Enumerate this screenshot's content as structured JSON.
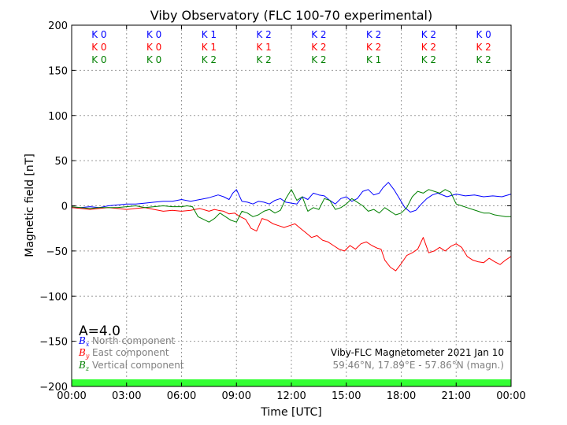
{
  "chart_data": {
    "type": "line",
    "title": "Viby Observatory (FLC 100-70 experimental)",
    "xlabel": "Time [UTC]",
    "ylabel": "Magnetic field [nT]",
    "xlim": [
      0,
      24
    ],
    "ylim": [
      -200,
      200
    ],
    "x_ticks": [
      0,
      3,
      6,
      9,
      12,
      15,
      18,
      21,
      24
    ],
    "x_tick_labels": [
      "00:00",
      "03:00",
      "06:00",
      "09:00",
      "12:00",
      "15:00",
      "18:00",
      "21:00",
      "00:00"
    ],
    "y_ticks": [
      -200,
      -150,
      -100,
      -50,
      0,
      50,
      100,
      150,
      200
    ],
    "y_tick_labels": [
      "−200",
      "−150",
      "−100",
      "−50",
      "0",
      "50",
      "100",
      "150",
      "200"
    ],
    "grid": true,
    "series": [
      {
        "name": "North component",
        "symbol": "B",
        "subscript": "x",
        "color": "#0000ff",
        "x": [
          0,
          0.5,
          1,
          1.5,
          2,
          2.5,
          3,
          3.5,
          4,
          4.5,
          5,
          5.5,
          6,
          6.5,
          7,
          7.5,
          8,
          8.3,
          8.6,
          8.8,
          9.0,
          9.3,
          9.6,
          9.9,
          10.2,
          10.5,
          10.8,
          11.1,
          11.4,
          11.7,
          12.0,
          12.3,
          12.6,
          12.9,
          13.2,
          13.5,
          13.8,
          14.1,
          14.4,
          14.7,
          15.0,
          15.3,
          15.6,
          15.9,
          16.2,
          16.5,
          16.8,
          17.0,
          17.3,
          17.6,
          17.9,
          18.2,
          18.5,
          18.8,
          19.1,
          19.4,
          19.7,
          20.0,
          20.5,
          21.0,
          21.5,
          22.0,
          22.5,
          23.0,
          23.5,
          24.0
        ],
        "y": [
          -2,
          -2,
          -1,
          -2,
          0,
          1,
          2,
          2,
          3,
          4,
          5,
          5,
          7,
          5,
          7,
          9,
          12,
          10,
          7,
          14,
          18,
          5,
          4,
          2,
          5,
          4,
          2,
          6,
          8,
          4,
          3,
          2,
          10,
          7,
          14,
          12,
          11,
          6,
          2,
          8,
          10,
          5,
          8,
          16,
          18,
          12,
          14,
          20,
          26,
          18,
          8,
          -2,
          -7,
          -5,
          2,
          8,
          12,
          14,
          10,
          13,
          11,
          12,
          10,
          11,
          10,
          13
        ]
      },
      {
        "name": "East component",
        "symbol": "B",
        "subscript": "y",
        "color": "#ff0000",
        "x": [
          0,
          0.5,
          1,
          1.5,
          2,
          2.5,
          3,
          3.5,
          4,
          4.5,
          5,
          5.5,
          6,
          6.5,
          7,
          7.5,
          7.8,
          8.0,
          8.3,
          8.6,
          8.9,
          9.2,
          9.5,
          9.8,
          10.1,
          10.4,
          10.7,
          11.0,
          11.3,
          11.6,
          11.9,
          12.2,
          12.5,
          12.8,
          13.1,
          13.4,
          13.7,
          14.0,
          14.3,
          14.6,
          14.9,
          15.2,
          15.5,
          15.8,
          16.1,
          16.4,
          16.7,
          16.9,
          17.1,
          17.4,
          17.7,
          18.0,
          18.3,
          18.6,
          18.9,
          19.2,
          19.5,
          19.8,
          20.1,
          20.4,
          20.7,
          21.0,
          21.3,
          21.6,
          21.9,
          22.2,
          22.5,
          22.8,
          23.1,
          23.4,
          23.7,
          24.0
        ],
        "y": [
          -2,
          -3,
          -4,
          -3,
          -2,
          -3,
          -4,
          -3,
          -2,
          -4,
          -6,
          -5,
          -6,
          -5,
          -3,
          -6,
          -4,
          -5,
          -6,
          -9,
          -8,
          -12,
          -15,
          -25,
          -28,
          -14,
          -16,
          -20,
          -22,
          -24,
          -22,
          -20,
          -25,
          -30,
          -35,
          -33,
          -38,
          -40,
          -44,
          -48,
          -50,
          -44,
          -48,
          -42,
          -40,
          -44,
          -47,
          -48,
          -60,
          -68,
          -72,
          -64,
          -55,
          -52,
          -48,
          -35,
          -52,
          -50,
          -46,
          -50,
          -45,
          -42,
          -46,
          -56,
          -60,
          -62,
          -63,
          -58,
          -62,
          -65,
          -60,
          -56
        ]
      },
      {
        "name": "Vertical component",
        "symbol": "B",
        "subscript": "z",
        "color": "#008000",
        "x": [
          0,
          0.5,
          1,
          1.5,
          2,
          2.5,
          3,
          3.5,
          4,
          4.5,
          5,
          5.5,
          6,
          6.3,
          6.6,
          6.9,
          7.2,
          7.5,
          7.8,
          8.1,
          8.4,
          8.7,
          9.0,
          9.3,
          9.6,
          9.9,
          10.2,
          10.5,
          10.8,
          11.1,
          11.4,
          11.7,
          12.0,
          12.3,
          12.6,
          12.9,
          13.2,
          13.5,
          13.8,
          14.1,
          14.4,
          14.7,
          15.0,
          15.3,
          15.6,
          15.9,
          16.2,
          16.5,
          16.8,
          17.1,
          17.4,
          17.7,
          18.0,
          18.3,
          18.6,
          18.9,
          19.2,
          19.5,
          19.8,
          20.1,
          20.4,
          20.7,
          21.0,
          21.3,
          21.6,
          21.9,
          22.2,
          22.5,
          22.8,
          23.1,
          23.4,
          23.7,
          24.0
        ],
        "y": [
          -1,
          -2,
          -3,
          -2,
          -2,
          -2,
          -1,
          0,
          -2,
          -1,
          0,
          -1,
          -1,
          0,
          -1,
          -12,
          -15,
          -18,
          -14,
          -8,
          -12,
          -16,
          -18,
          -6,
          -8,
          -12,
          -10,
          -6,
          -4,
          -8,
          -5,
          8,
          18,
          6,
          10,
          -6,
          -2,
          -4,
          8,
          6,
          -4,
          -2,
          2,
          8,
          4,
          0,
          -6,
          -4,
          -8,
          -2,
          -6,
          -10,
          -8,
          -2,
          10,
          16,
          14,
          18,
          16,
          14,
          18,
          15,
          2,
          0,
          -2,
          -4,
          -6,
          -8,
          -8,
          -10,
          -11,
          -12,
          -12
        ]
      }
    ],
    "k_index_rows": [
      {
        "color": "#0000ff",
        "values": [
          "K 0",
          "K 0",
          "K 1",
          "K 2",
          "K 2",
          "K 2",
          "K 2",
          "K 0"
        ]
      },
      {
        "color": "#ff0000",
        "values": [
          "K 0",
          "K 0",
          "K 1",
          "K 1",
          "K 2",
          "K 2",
          "K 2",
          "K 2"
        ]
      },
      {
        "color": "#008000",
        "values": [
          "K 0",
          "K 0",
          "K 2",
          "K 2",
          "K 2",
          "K 1",
          "K 2",
          "K 2"
        ]
      }
    ],
    "a_index": "A=4.0",
    "info_line1": "Viby-FLC Magnetometer 2021 Jan 10",
    "info_line2": "59.46°N, 17.89°E - 57.86°N (magn.)",
    "status_bar_color": "#33ff33",
    "legend_placement": "bottom-left"
  }
}
